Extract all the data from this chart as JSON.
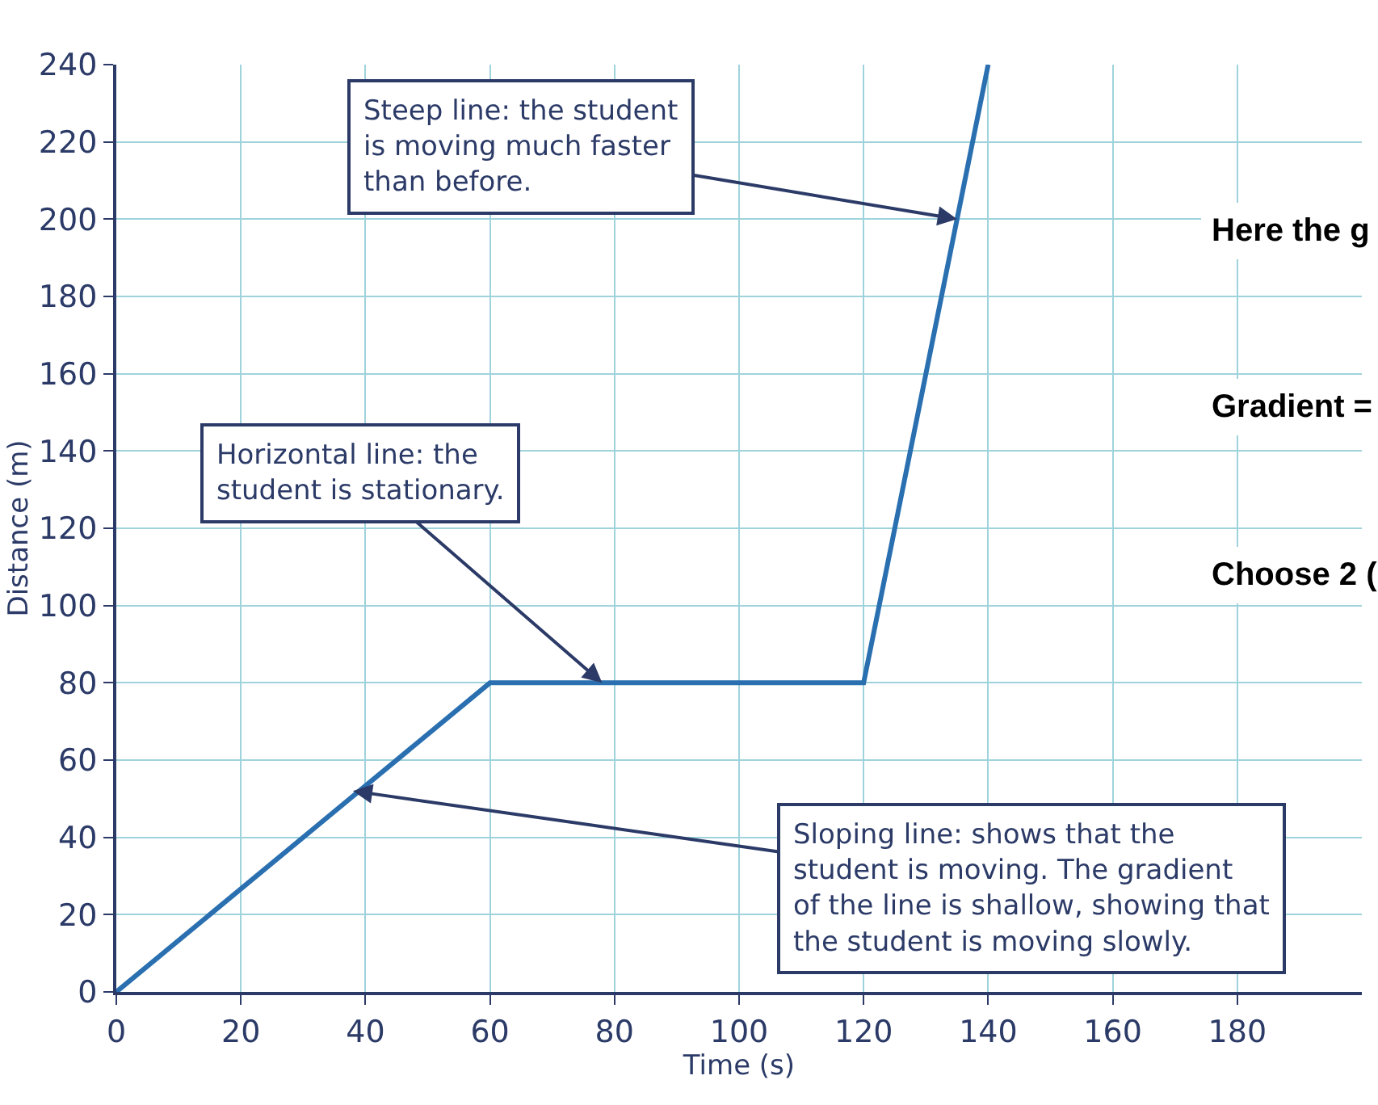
{
  "chart_data": {
    "type": "line",
    "xlabel": "Time (s)",
    "ylabel": "Distance (m)",
    "x": [
      0,
      60,
      120,
      140
    ],
    "series": [
      {
        "color": "#2a6fb0",
        "values": [
          0,
          80,
          80,
          240
        ]
      }
    ],
    "xlim": [
      0,
      200
    ],
    "xticks": [
      0,
      20,
      40,
      60,
      80,
      100,
      120,
      140,
      160,
      180
    ],
    "ylim": [
      0,
      240
    ],
    "yticks": [
      0,
      20,
      40,
      60,
      80,
      100,
      120,
      140,
      160,
      180,
      200,
      220,
      240
    ],
    "grid": true,
    "marker": "none",
    "line_style": "solid",
    "annotations": [
      {
        "text": "Steep line: the student\nis moving much faster\nthan before.",
        "x": 135,
        "y": 200
      },
      {
        "text": "Horizontal line: the\nstudent is stationary.",
        "x": 78,
        "y": 80
      },
      {
        "text": "Sloping line: shows that the\nstudent is moving. The gradient\nof the line is shallow, showing that\nthe student is moving slowly.",
        "x": 38,
        "y": 52
      },
      "Here the g",
      "Gradient =",
      "Choose 2 ("
    ]
  }
}
